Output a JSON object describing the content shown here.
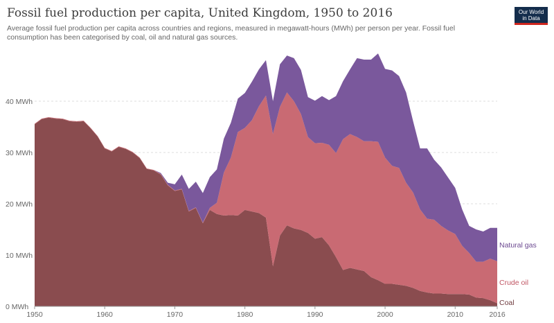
{
  "header": {
    "title": "Fossil fuel production per capita, United Kingdom, 1950 to 2016",
    "subtitle": "Average fossil fuel production per capita across countries and regions, measured in megawatt-hours (MWh) per person per year. Fossil fuel consumption has been categorised by coal, oil and natural gas sources."
  },
  "logo": {
    "line1": "Our World",
    "line2": "in Data"
  },
  "chart_data": {
    "type": "area",
    "stacked": true,
    "x_label": "",
    "y_label": "",
    "ylim": [
      0,
      50
    ],
    "xlim": [
      1950,
      2016
    ],
    "y_ticks": [
      0,
      10,
      20,
      30,
      40
    ],
    "y_tick_labels": [
      "0 MWh",
      "10 MWh",
      "20 MWh",
      "30 MWh",
      "40 MWh"
    ],
    "x_ticks": [
      1950,
      1960,
      1970,
      1980,
      1990,
      2000,
      2010,
      2016
    ],
    "x_tick_labels": [
      "1950",
      "1960",
      "1970",
      "1980",
      "1990",
      "2000",
      "2010",
      "2016"
    ],
    "grid": "horizontal dashed",
    "legend": "right, inline labels",
    "x": [
      1950,
      1951,
      1952,
      1953,
      1954,
      1955,
      1956,
      1957,
      1958,
      1959,
      1960,
      1961,
      1962,
      1963,
      1964,
      1965,
      1966,
      1967,
      1968,
      1969,
      1970,
      1971,
      1972,
      1973,
      1974,
      1975,
      1976,
      1977,
      1978,
      1979,
      1980,
      1981,
      1982,
      1983,
      1984,
      1985,
      1986,
      1987,
      1988,
      1989,
      1990,
      1991,
      1992,
      1993,
      1994,
      1995,
      1996,
      1997,
      1998,
      1999,
      2000,
      2001,
      2002,
      2003,
      2004,
      2005,
      2006,
      2007,
      2008,
      2009,
      2010,
      2011,
      2012,
      2013,
      2014,
      2015,
      2016
    ],
    "series": [
      {
        "name": "Coal",
        "color": "#8a4c4f",
        "values": [
          35.5,
          36.5,
          36.8,
          36.6,
          36.5,
          36.1,
          36.0,
          36.1,
          34.7,
          33.1,
          30.8,
          30.2,
          31.1,
          30.7,
          30.0,
          28.9,
          26.8,
          26.5,
          25.7,
          23.6,
          22.5,
          22.8,
          18.5,
          19.2,
          16.2,
          18.8,
          18.0,
          17.7,
          17.8,
          17.7,
          18.8,
          18.5,
          18.2,
          17.3,
          7.8,
          13.8,
          15.8,
          15.2,
          14.9,
          14.3,
          13.2,
          13.5,
          11.9,
          9.6,
          7.1,
          7.5,
          7.2,
          6.9,
          5.7,
          5.1,
          4.4,
          4.4,
          4.2,
          4.0,
          3.6,
          3.0,
          2.7,
          2.5,
          2.5,
          2.4,
          2.4,
          2.4,
          2.3,
          1.7,
          1.6,
          1.2,
          0.6
        ]
      },
      {
        "name": "Crude oil",
        "color": "#c96a73",
        "values": [
          0.1,
          0.1,
          0.1,
          0.1,
          0.1,
          0.1,
          0.1,
          0.1,
          0.1,
          0.1,
          0.1,
          0.1,
          0.1,
          0.1,
          0.1,
          0.1,
          0.1,
          0.1,
          0.1,
          0.1,
          0.1,
          0.1,
          0.1,
          0.1,
          0.1,
          0.4,
          2.2,
          8.4,
          11.2,
          16.3,
          16.0,
          17.8,
          20.8,
          23.8,
          25.8,
          25.1,
          25.9,
          24.8,
          22.6,
          18.7,
          18.6,
          18.4,
          19.6,
          20.3,
          25.5,
          26.1,
          25.8,
          25.3,
          26.5,
          27.0,
          24.6,
          23.0,
          22.8,
          20.1,
          18.6,
          15.9,
          14.4,
          14.4,
          13.2,
          12.4,
          11.7,
          9.4,
          8.1,
          7.0,
          7.1,
          8.1,
          8.2
        ]
      },
      {
        "name": "Natural gas",
        "color": "#7a589c",
        "values": [
          0.0,
          0.0,
          0.0,
          0.0,
          0.0,
          0.0,
          0.0,
          0.0,
          0.0,
          0.0,
          0.0,
          0.0,
          0.0,
          0.0,
          0.0,
          0.0,
          0.0,
          0.0,
          0.2,
          0.4,
          1.2,
          2.8,
          4.3,
          5.0,
          5.8,
          6.0,
          6.5,
          6.6,
          6.8,
          6.5,
          6.8,
          7.5,
          7.2,
          6.9,
          6.4,
          8.3,
          7.2,
          8.4,
          8.6,
          7.8,
          8.3,
          9.1,
          8.7,
          11.1,
          11.3,
          12.6,
          15.4,
          15.9,
          15.9,
          17.2,
          17.3,
          18.6,
          17.9,
          17.6,
          13.9,
          11.9,
          13.7,
          11.7,
          11.4,
          10.3,
          9.0,
          7.1,
          5.3,
          6.3,
          5.9,
          6.0,
          6.5
        ]
      }
    ]
  }
}
